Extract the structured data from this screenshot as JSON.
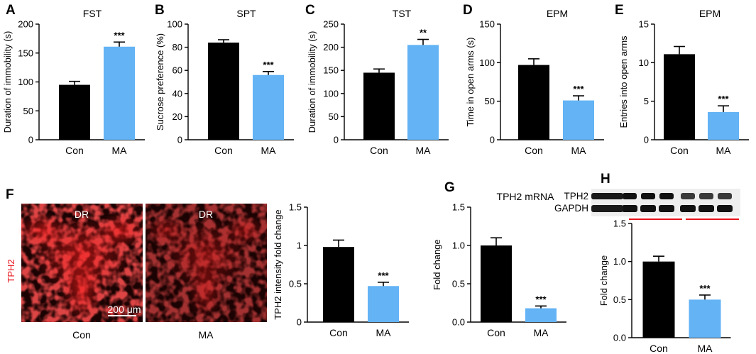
{
  "figure": {
    "palette": {
      "control": "#000000",
      "treated": "#63b3f5",
      "red": "#e8141b",
      "axis": "#000000"
    },
    "microscopy": {
      "letter": "F",
      "stain": "TPH2",
      "region_label": "DR",
      "scale_bar": "200 μm",
      "conditions": [
        "Con",
        "MA"
      ]
    },
    "blot": {
      "rows": [
        "TPH2",
        "GAPDH"
      ],
      "lanes_per_group": 3
    }
  },
  "chart_data": [
    {
      "letter": "A",
      "type": "bar",
      "title": "FST",
      "ylabel": "Duration of immobility (s)",
      "categories": [
        "Con",
        "MA"
      ],
      "values": [
        95,
        161
      ],
      "errors": [
        6,
        8
      ],
      "ylim": [
        0,
        200
      ],
      "ticks": [
        "0",
        "50",
        "100",
        "150",
        "200"
      ],
      "significance": "***"
    },
    {
      "letter": "B",
      "type": "bar",
      "title": "SPT",
      "ylabel": "Sucrose preference (%)",
      "categories": [
        "Con",
        "MA"
      ],
      "values": [
        84,
        56
      ],
      "errors": [
        2.5,
        3
      ],
      "ylim": [
        0,
        100
      ],
      "ticks": [
        "0",
        "20",
        "40",
        "60",
        "80",
        "100"
      ],
      "significance": "***"
    },
    {
      "letter": "C",
      "type": "bar",
      "title": "TST",
      "ylabel": "Duration of immobility (s)",
      "categories": [
        "Con",
        "MA"
      ],
      "values": [
        145,
        205
      ],
      "errors": [
        8,
        12
      ],
      "ylim": [
        0,
        250
      ],
      "ticks": [
        "0",
        "50",
        "100",
        "150",
        "200",
        "250"
      ],
      "significance": "**"
    },
    {
      "letter": "D",
      "type": "bar",
      "title": "EPM",
      "ylabel": "Time in open arms (s)",
      "categories": [
        "Con",
        "MA"
      ],
      "values": [
        97,
        51
      ],
      "errors": [
        8,
        6
      ],
      "ylim": [
        0,
        150
      ],
      "ticks": [
        "0",
        "50",
        "100",
        "150"
      ],
      "significance": "***"
    },
    {
      "letter": "E",
      "type": "bar",
      "title": "EPM",
      "ylabel": "Entries into open arms",
      "categories": [
        "Con",
        "MA"
      ],
      "values": [
        11.1,
        3.6
      ],
      "errors": [
        1.0,
        0.8
      ],
      "ylim": [
        0,
        15
      ],
      "ticks": [
        "0",
        "5",
        "10",
        "15"
      ],
      "significance": "***"
    },
    {
      "letter": "",
      "type": "bar",
      "title": "",
      "ylabel": "TPH2 intensity fold change",
      "categories": [
        "Con",
        "MA"
      ],
      "values": [
        0.98,
        0.47
      ],
      "errors": [
        0.09,
        0.05
      ],
      "ylim": [
        0,
        1.5
      ],
      "ticks": [
        "0",
        "0.5",
        "1",
        "1.5"
      ],
      "significance": "***"
    },
    {
      "letter": "G",
      "type": "bar",
      "title": "TPH2 mRNA",
      "ylabel": "Fold change",
      "categories": [
        "Con",
        "MA"
      ],
      "values": [
        1.0,
        0.18
      ],
      "errors": [
        0.1,
        0.03
      ],
      "ylim": [
        0,
        1.5
      ],
      "ticks": [
        "0.0",
        "0.5",
        "1.0",
        "1.5"
      ],
      "significance": "***"
    },
    {
      "letter": "H",
      "type": "bar",
      "title": "",
      "ylabel": "Fold change",
      "categories": [
        "Con",
        "MA"
      ],
      "values": [
        1.0,
        0.5
      ],
      "errors": [
        0.07,
        0.06
      ],
      "ylim": [
        0,
        1.5
      ],
      "ticks": [
        "0.0",
        "0.5",
        "1.0",
        "1.5"
      ],
      "significance": "***"
    }
  ]
}
